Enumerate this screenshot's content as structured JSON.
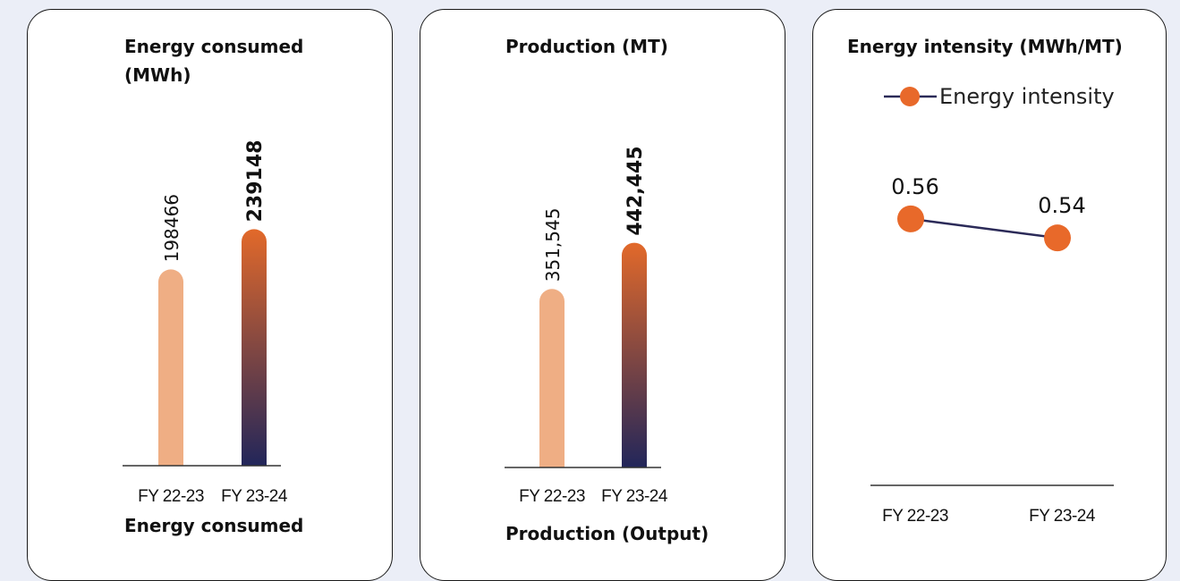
{
  "colors": {
    "bar_light": "#efae84",
    "bar_grad_top": "#e2692a",
    "bar_grad_bottom": "#22265a",
    "line": "#2b2a58",
    "marker": "#e8692a"
  },
  "cards": [
    {
      "title_lines": [
        "Energy consumed",
        "(MWh)"
      ],
      "footer": "Energy consumed"
    },
    {
      "title_lines": [
        "Production (MT)"
      ],
      "footer": "Production (Output)"
    },
    {
      "title_lines": [
        "Energy intensity (MWh/MT)"
      ],
      "footer": ""
    }
  ],
  "chart_data": [
    {
      "type": "bar",
      "title": "Energy consumed (MWh)",
      "categories": [
        "FY 22-23",
        "FY 23-24"
      ],
      "values": [
        198466,
        239148
      ],
      "value_labels": [
        "198466",
        "239148"
      ],
      "xlabel": "Energy consumed",
      "ylabel": "",
      "ylim": [
        0,
        282000
      ]
    },
    {
      "type": "bar",
      "title": "Production (MT)",
      "categories": [
        "FY 22-23",
        "FY 23-24"
      ],
      "values": [
        351545,
        442445
      ],
      "value_labels": [
        "351,545",
        "442,445"
      ],
      "xlabel": "Production (Output)",
      "ylabel": "",
      "ylim": [
        0,
        528000
      ]
    },
    {
      "type": "line",
      "title": "Energy intensity (MWh/MT)",
      "categories": [
        "FY 22-23",
        "FY 23-24"
      ],
      "series": [
        {
          "name": "Energy intensity",
          "values": [
            0.56,
            0.54
          ]
        }
      ],
      "value_labels": [
        "0.56",
        "0.54"
      ],
      "legend": "top",
      "xlabel": "",
      "ylabel": "",
      "ylim": [
        0.28,
        0.62
      ]
    }
  ]
}
